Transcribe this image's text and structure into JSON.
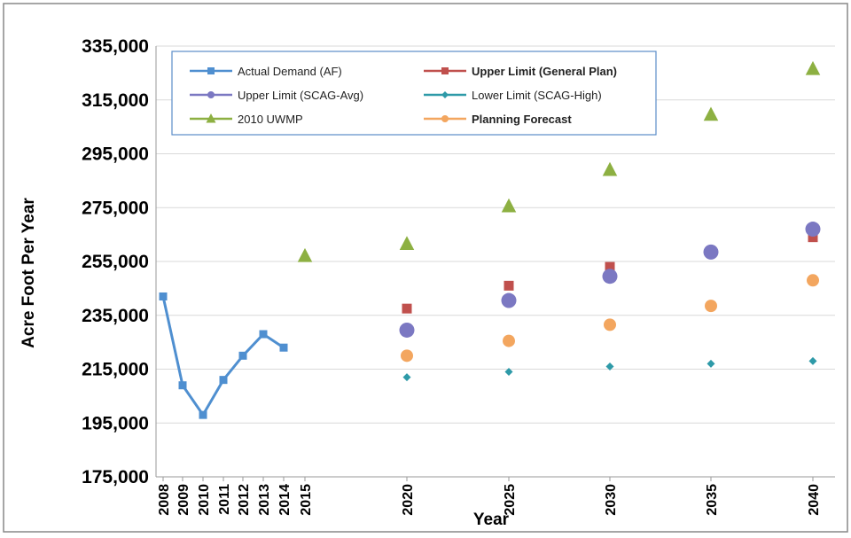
{
  "chart_data": {
    "type": "scatter",
    "xlabel": "Year",
    "ylabel": "Acre Foot Per Year",
    "ylim": [
      175000,
      335000
    ],
    "yticks": [
      "175,000",
      "195,000",
      "215,000",
      "235,000",
      "255,000",
      "275,000",
      "295,000",
      "315,000",
      "335,000"
    ],
    "xticks": [
      "2008",
      "2009",
      "2010",
      "2011",
      "2012",
      "2013",
      "2014",
      "2015",
      "2020",
      "2025",
      "2030",
      "2035",
      "2040"
    ],
    "grid": "horizontal",
    "legend_position": "top-left",
    "series": [
      {
        "name": "Actual Demand (AF)",
        "color": "#4F8FD0",
        "marker": "square",
        "line": true,
        "points": [
          [
            2008,
            242000
          ],
          [
            2009,
            209000
          ],
          [
            2010,
            198000
          ],
          [
            2011,
            211000
          ],
          [
            2012,
            220000
          ],
          [
            2013,
            228000
          ],
          [
            2014,
            223000
          ]
        ]
      },
      {
        "name": "Upper Limit (General Plan)",
        "color": "#C0504D",
        "marker": "square",
        "line": false,
        "points": [
          [
            2020,
            237500
          ],
          [
            2025,
            246000
          ],
          [
            2030,
            253000
          ],
          [
            2040,
            264000
          ]
        ]
      },
      {
        "name": "Upper Limit (SCAG-Avg)",
        "color": "#7B78C2",
        "marker": "circle",
        "line": false,
        "points": [
          [
            2020,
            229500
          ],
          [
            2025,
            240500
          ],
          [
            2030,
            249500
          ],
          [
            2035,
            258500
          ],
          [
            2040,
            267000
          ]
        ]
      },
      {
        "name": "Lower Limit (SCAG-High)",
        "color": "#2E9AA8",
        "marker": "diamond",
        "line": false,
        "points": [
          [
            2020,
            212000
          ],
          [
            2025,
            214000
          ],
          [
            2030,
            216000
          ],
          [
            2035,
            217000
          ],
          [
            2040,
            218000
          ]
        ]
      },
      {
        "name": "2010 UWMP",
        "color": "#8DB042",
        "marker": "triangle",
        "line": false,
        "points": [
          [
            2015,
            257000
          ],
          [
            2020,
            261500
          ],
          [
            2025,
            275500
          ],
          [
            2030,
            289000
          ],
          [
            2035,
            309500
          ],
          [
            2040,
            326500
          ]
        ]
      },
      {
        "name": "Planning Forecast",
        "color": "#F3A65F",
        "marker": "circle",
        "line": false,
        "points": [
          [
            2020,
            220000
          ],
          [
            2025,
            225500
          ],
          [
            2030,
            231500
          ],
          [
            2035,
            238500
          ],
          [
            2040,
            248000
          ]
        ]
      }
    ]
  }
}
